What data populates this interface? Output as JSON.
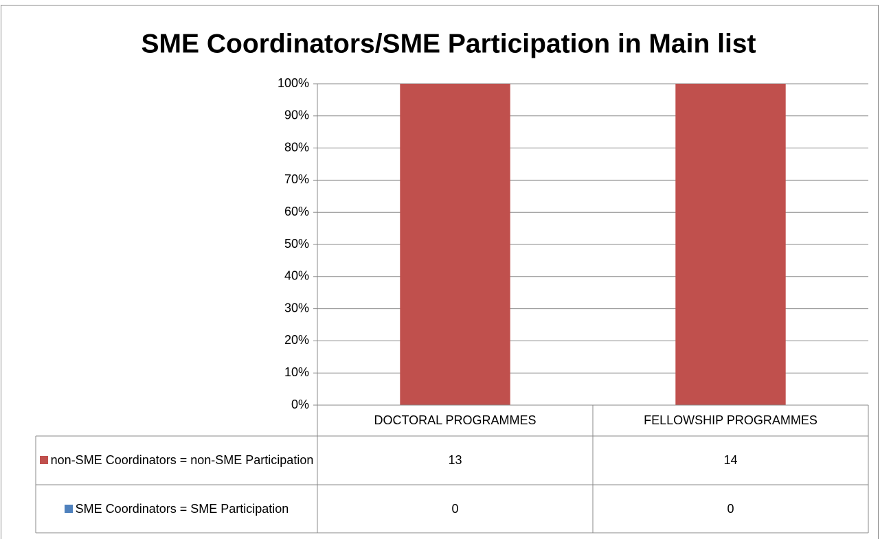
{
  "chart_data": {
    "type": "bar",
    "stacked": "percent",
    "title": "SME Coordinators/SME Participation in Main list",
    "categories": [
      "DOCTORAL PROGRAMMES",
      "FELLOWSHIP PROGRAMMES"
    ],
    "series": [
      {
        "name": "non-SME Coordinators = non-SME Participation",
        "color": "#c0504d",
        "values": [
          13,
          14
        ]
      },
      {
        "name": "SME Coordinators = SME Participation",
        "color": "#4f81bd",
        "values": [
          0,
          0
        ]
      }
    ],
    "ylim": [
      0,
      100
    ],
    "yticks": [
      {
        "value": 0,
        "label": "0%"
      },
      {
        "value": 10,
        "label": "10%"
      },
      {
        "value": 20,
        "label": "20%"
      },
      {
        "value": 30,
        "label": "30%"
      },
      {
        "value": 40,
        "label": "40%"
      },
      {
        "value": 50,
        "label": "50%"
      },
      {
        "value": 60,
        "label": "60%"
      },
      {
        "value": 70,
        "label": "70%"
      },
      {
        "value": 80,
        "label": "80%"
      },
      {
        "value": 90,
        "label": "90%"
      },
      {
        "value": 100,
        "label": "100%"
      }
    ],
    "grid": true,
    "data_table": true
  }
}
